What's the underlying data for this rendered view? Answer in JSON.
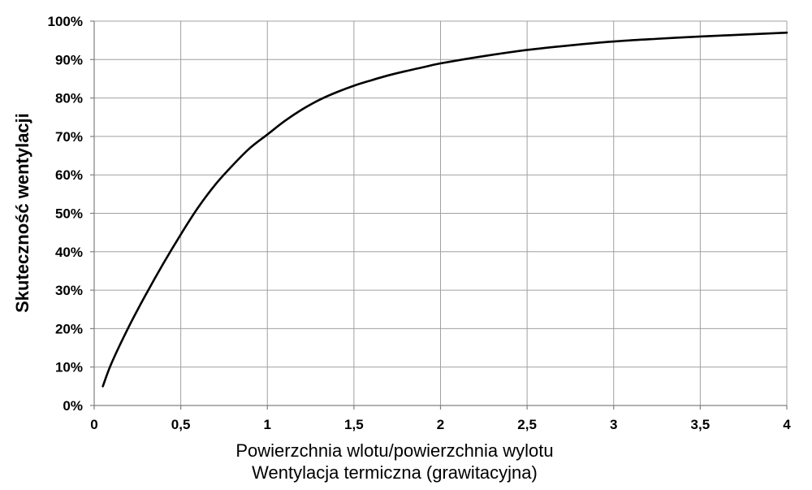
{
  "chart_data": {
    "type": "line",
    "title": "",
    "xlabel": "Powierzchnia wlotu/powierzchnia wylotu",
    "xlabel2": "Wentylacja termiczna (grawitacyjna)",
    "ylabel": "Skuteczność wentylacji",
    "xlim": [
      0,
      4
    ],
    "ylim": [
      0,
      100
    ],
    "x_ticks": [
      "0",
      "0,5",
      "1",
      "1,5",
      "2",
      "2,5",
      "3",
      "3,5",
      "4"
    ],
    "y_ticks": [
      "0%",
      "10%",
      "20%",
      "30%",
      "40%",
      "50%",
      "60%",
      "70%",
      "80%",
      "90%",
      "100%"
    ],
    "grid": true,
    "line_color": "#000000",
    "series": [
      {
        "x": [
          0.05,
          0.1,
          0.2,
          0.3,
          0.4,
          0.5,
          0.6,
          0.7,
          0.8,
          0.9,
          1.0,
          1.1,
          1.2,
          1.3,
          1.4,
          1.5,
          1.6,
          1.7,
          1.8,
          1.9,
          2.0,
          2.25,
          2.5,
          2.75,
          3.0,
          3.25,
          3.5,
          3.75,
          4.0
        ],
        "values": [
          5,
          11,
          20.5,
          29,
          37,
          44.5,
          51.5,
          57.5,
          62.5,
          67,
          70.5,
          74,
          77,
          79.5,
          81.5,
          83.2,
          84.6,
          85.9,
          87,
          88,
          89,
          90.9,
          92.5,
          93.7,
          94.7,
          95.4,
          96,
          96.5,
          97
        ]
      }
    ]
  }
}
